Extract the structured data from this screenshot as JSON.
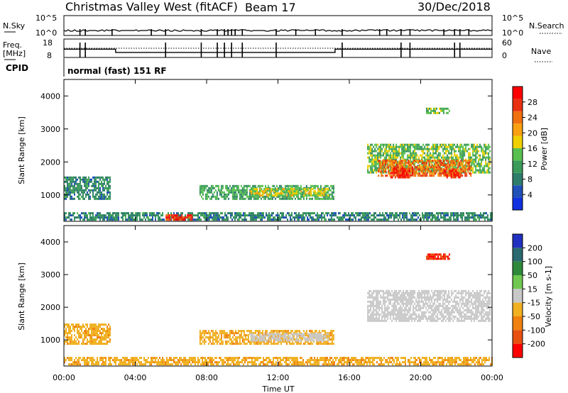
{
  "header": {
    "station": "Christmas Valley West (fitACF)",
    "beam": "Beam 17",
    "date": "30/Dec/2018"
  },
  "strips": {
    "nsky_label": "N.Sky",
    "nsky_ticks": [
      "10^5",
      "10^0"
    ],
    "nsearch_label": "N.Search",
    "nsearch_ticks": [
      "10^5",
      "10^0"
    ],
    "freq_label_1": "Freq.",
    "freq_label_2": "[MHz]",
    "freq_ticks": [
      "18",
      "8"
    ],
    "nave_label": "Nave",
    "nave_ticks": [
      "60",
      "0"
    ],
    "cpid_label": "CPID",
    "cpid_value": "normal (fast) 151 RF"
  },
  "colors": {
    "power_scale": [
      "#1030e0",
      "#2050b8",
      "#2e7d6a",
      "#3a9a5a",
      "#58c050",
      "#f0d000",
      "#f8a010",
      "#f07010",
      "#e83010",
      "#ff0000"
    ],
    "velocity_scale": [
      "#2030c0",
      "#2a6a70",
      "#2e8a3a",
      "#70c850",
      "#c8c8c8",
      "#f0b020",
      "#f08010",
      "#e85010",
      "#ff0000"
    ],
    "ground_scatter": "#c8c8c8"
  },
  "chart_data": [
    {
      "type": "heatmap",
      "panel": "power",
      "xlabel": "",
      "ylabel": "Slant Range [km]",
      "ylim": [
        200,
        4500
      ],
      "yticks": [
        "1000",
        "2000",
        "3000",
        "4000"
      ],
      "colorbar_label": "Power [dB]",
      "colorbar_ticks": [
        "4",
        "8",
        "12",
        "16",
        "20",
        "24",
        "28"
      ],
      "colorbar_range": [
        0,
        32
      ],
      "patches": [
        {
          "t0": 0.0,
          "t1": 2.6,
          "r0": 850,
          "r1": 1500,
          "value": 9
        },
        {
          "t0": 7.6,
          "t1": 15.1,
          "r0": 850,
          "r1": 1300,
          "value": 12
        },
        {
          "t0": 10.4,
          "t1": 14.8,
          "r0": 950,
          "r1": 1200,
          "value": 17
        },
        {
          "t0": 17.0,
          "t1": 23.9,
          "r0": 1650,
          "r1": 2500,
          "value": 14
        },
        {
          "t0": 17.6,
          "t1": 22.8,
          "r0": 1550,
          "r1": 2050,
          "value": 24
        },
        {
          "t0": 18.3,
          "t1": 19.5,
          "r0": 1500,
          "r1": 1800,
          "value": 29
        },
        {
          "t0": 21.2,
          "t1": 22.2,
          "r0": 1500,
          "r1": 1750,
          "value": 28
        },
        {
          "t0": 20.3,
          "t1": 21.6,
          "r0": 3450,
          "r1": 3600,
          "value": 14
        },
        {
          "t0": 0.0,
          "t1": 24.0,
          "r0": 220,
          "r1": 450,
          "value": 9
        },
        {
          "t0": 5.7,
          "t1": 7.2,
          "r0": 220,
          "r1": 380,
          "value": 28
        }
      ]
    },
    {
      "type": "heatmap",
      "panel": "velocity",
      "xlabel": "Time UT",
      "ylabel": "Slant Range [km]",
      "ylim": [
        200,
        4500
      ],
      "yticks": [
        "1000",
        "2000",
        "3000",
        "4000"
      ],
      "xticks": [
        "00:00",
        "04:00",
        "08:00",
        "12:00",
        "16:00",
        "20:00",
        "00:00"
      ],
      "xlim": [
        0,
        24
      ],
      "colorbar_label": "Velocity [m s-1]",
      "colorbar_ticks": [
        "200",
        "100",
        "50",
        "15",
        "-15",
        "-50",
        "-100",
        "-200"
      ],
      "patches": [
        {
          "t0": 0.0,
          "t1": 2.6,
          "r0": 850,
          "r1": 1500,
          "value": -40
        },
        {
          "t0": 7.6,
          "t1": 15.1,
          "r0": 850,
          "r1": 1300,
          "value": -40
        },
        {
          "t0": 10.4,
          "t1": 14.8,
          "r0": 950,
          "r1": 1200,
          "value": 0
        },
        {
          "t0": 17.0,
          "t1": 23.9,
          "r0": 1550,
          "r1": 2500,
          "value": 0
        },
        {
          "t0": 20.3,
          "t1": 21.6,
          "r0": 3450,
          "r1": 3600,
          "value": -200
        },
        {
          "t0": 0.0,
          "t1": 24.0,
          "r0": 220,
          "r1": 450,
          "value": -40
        }
      ]
    }
  ]
}
